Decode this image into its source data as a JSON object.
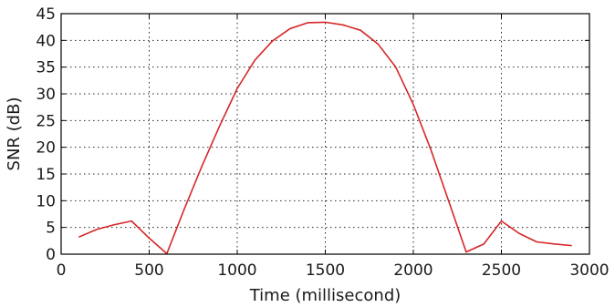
{
  "chart_data": {
    "type": "line",
    "xlabel": "Time (millisecond)",
    "ylabel": "SNR (dB)",
    "xlim": [
      0,
      3000
    ],
    "ylim": [
      0,
      45
    ],
    "xticks": [
      0,
      500,
      1000,
      1500,
      2000,
      2500,
      3000
    ],
    "yticks": [
      0,
      5,
      10,
      15,
      20,
      25,
      30,
      35,
      40,
      45
    ],
    "xtick_labels": [
      "0",
      "500",
      "1000",
      "1500",
      "2000",
      "2500",
      "3000"
    ],
    "ytick_labels": [
      "0",
      "5",
      "10",
      "15",
      "20",
      "25",
      "30",
      "35",
      "40",
      "45"
    ],
    "grid": true,
    "series": [
      {
        "color": "#d62728",
        "x": [
          100,
          200,
          300,
          400,
          500,
          600,
          700,
          800,
          900,
          1000,
          1100,
          1200,
          1300,
          1400,
          1500,
          1600,
          1700,
          1800,
          1900,
          2000,
          2100,
          2200,
          2300,
          2400,
          2500,
          2600,
          2700,
          2800,
          2900
        ],
        "y": [
          3.2,
          4.6,
          5.5,
          6.2,
          3.0,
          0.1,
          8.5,
          16.5,
          24.0,
          31.0,
          36.3,
          39.9,
          42.2,
          43.3,
          43.4,
          42.9,
          41.9,
          39.3,
          35.0,
          28.0,
          19.5,
          10.0,
          0.4,
          1.9,
          6.2,
          3.9,
          2.3,
          1.9,
          1.6
        ]
      }
    ]
  }
}
